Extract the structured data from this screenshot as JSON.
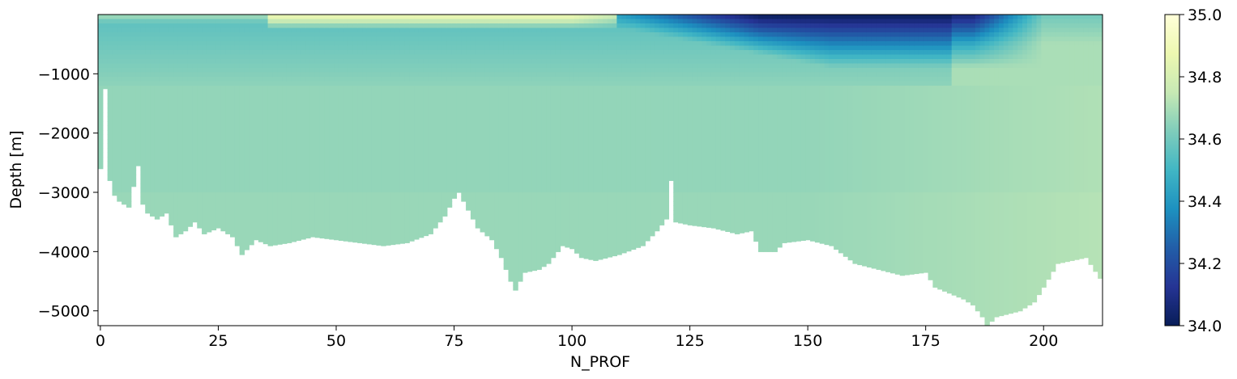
{
  "chart_data": {
    "type": "heatmap",
    "title": "",
    "xlabel": "N_PROF",
    "ylabel": "Depth [m]",
    "xlim": [
      -0.5,
      212.5
    ],
    "ylim": [
      -5250,
      0
    ],
    "x_ticks": [
      0,
      25,
      50,
      75,
      100,
      125,
      150,
      175,
      200
    ],
    "y_ticks": [
      -1000,
      -2000,
      -3000,
      -4000,
      -5000
    ],
    "colorbar": {
      "colormap": "YlGnBu_r",
      "vmin": 34.0,
      "vmax": 35.0,
      "ticks": [
        "34.0",
        "34.2",
        "34.4",
        "34.6",
        "34.8",
        "35.0"
      ]
    },
    "colormap_stops": [
      "#081d58",
      "#253494",
      "#225ea8",
      "#1d91c0",
      "#41b6c4",
      "#7fcdbb",
      "#c7e9b4",
      "#edf8b1",
      "#ffffd9"
    ],
    "bottom_depth_profile": {
      "x": [
        0,
        1,
        2,
        3,
        4,
        6,
        8,
        9,
        10,
        12,
        14,
        16,
        18,
        20,
        22,
        25,
        28,
        30,
        33,
        36,
        40,
        45,
        50,
        55,
        60,
        65,
        70,
        73,
        75,
        76,
        78,
        80,
        83,
        85,
        87,
        88,
        90,
        93,
        95,
        98,
        100,
        102,
        105,
        110,
        115,
        118,
        120,
        121,
        122,
        125,
        130,
        135,
        138,
        140,
        143,
        145,
        150,
        155,
        160,
        165,
        170,
        175,
        177,
        180,
        183,
        185,
        187,
        188,
        190,
        195,
        198,
        200,
        203,
        206,
        209,
        212
      ],
      "depth": [
        -2600,
        -1250,
        -2800,
        -3050,
        -3150,
        -3250,
        -2550,
        -3200,
        -3350,
        -3450,
        -3350,
        -3750,
        -3650,
        -3500,
        -3700,
        -3600,
        -3750,
        -4050,
        -3800,
        -3900,
        -3850,
        -3750,
        -3800,
        -3850,
        -3900,
        -3850,
        -3700,
        -3400,
        -3100,
        -3000,
        -3300,
        -3600,
        -3800,
        -4100,
        -4500,
        -4650,
        -4350,
        -4300,
        -4200,
        -3900,
        -3950,
        -4100,
        -4150,
        -4050,
        -3900,
        -3650,
        -3450,
        -2800,
        -3500,
        -3550,
        -3600,
        -3700,
        -3650,
        -4000,
        -4000,
        -3850,
        -3800,
        -3900,
        -4200,
        -4300,
        -4400,
        -4350,
        -4600,
        -4700,
        -4800,
        -4900,
        -5100,
        -5250,
        -5100,
        -5000,
        -4850,
        -4600,
        -4200,
        -4150,
        -4100,
        -4450
      ]
    }
  }
}
